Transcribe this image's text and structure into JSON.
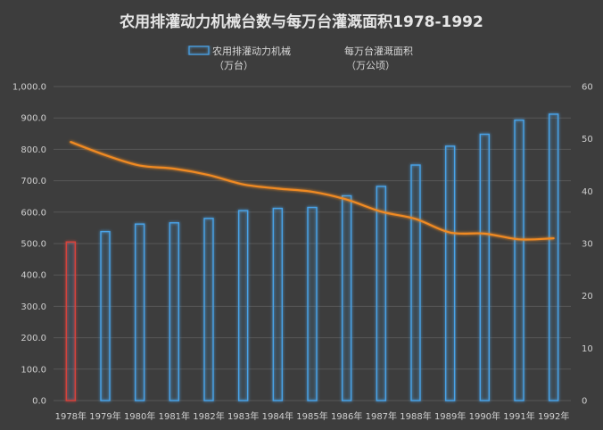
{
  "chart_data": {
    "type": "bar+line",
    "title": "农用排灌动力机械台数与每万台灌溉面积1978-1992",
    "categories": [
      "1978年",
      "1979年",
      "1980年",
      "1981年",
      "1982年",
      "1983年",
      "1984年",
      "1985年",
      "1986年",
      "1987年",
      "1988年",
      "1989年",
      "1990年",
      "1991年",
      "1992年"
    ],
    "left_axis": {
      "ylim": [
        0,
        1000
      ],
      "ticks": [
        "0.0",
        "100.0",
        "200.0",
        "300.0",
        "400.0",
        "500.0",
        "600.0",
        "700.0",
        "800.0",
        "900.0",
        "1,000.0"
      ]
    },
    "right_axis": {
      "ylim": [
        0,
        60
      ],
      "ticks": [
        "0",
        "10",
        "20",
        "30",
        "40",
        "50",
        "60"
      ]
    },
    "series": [
      {
        "name_line1": "农用排灌动力机械",
        "name_line2": "（万台）",
        "type": "bar",
        "axis": "left",
        "color": "#4aa3e8",
        "highlight_color": "#d9433a",
        "highlight_index": 0,
        "values": [
          505,
          538,
          562,
          566,
          580,
          605,
          612,
          615,
          652,
          682,
          750,
          810,
          848,
          893,
          912
        ]
      },
      {
        "name_line1": "每万台灌溉面积",
        "name_line2": "（万公顷）",
        "type": "line",
        "axis": "right",
        "color": "#f08a24",
        "values": [
          49.4,
          46.9,
          44.9,
          44.3,
          43.1,
          41.3,
          40.5,
          39.9,
          38.4,
          36.1,
          34.7,
          32.1,
          31.9,
          30.8,
          31.0
        ]
      }
    ],
    "grid": true,
    "legend_position": "top"
  }
}
